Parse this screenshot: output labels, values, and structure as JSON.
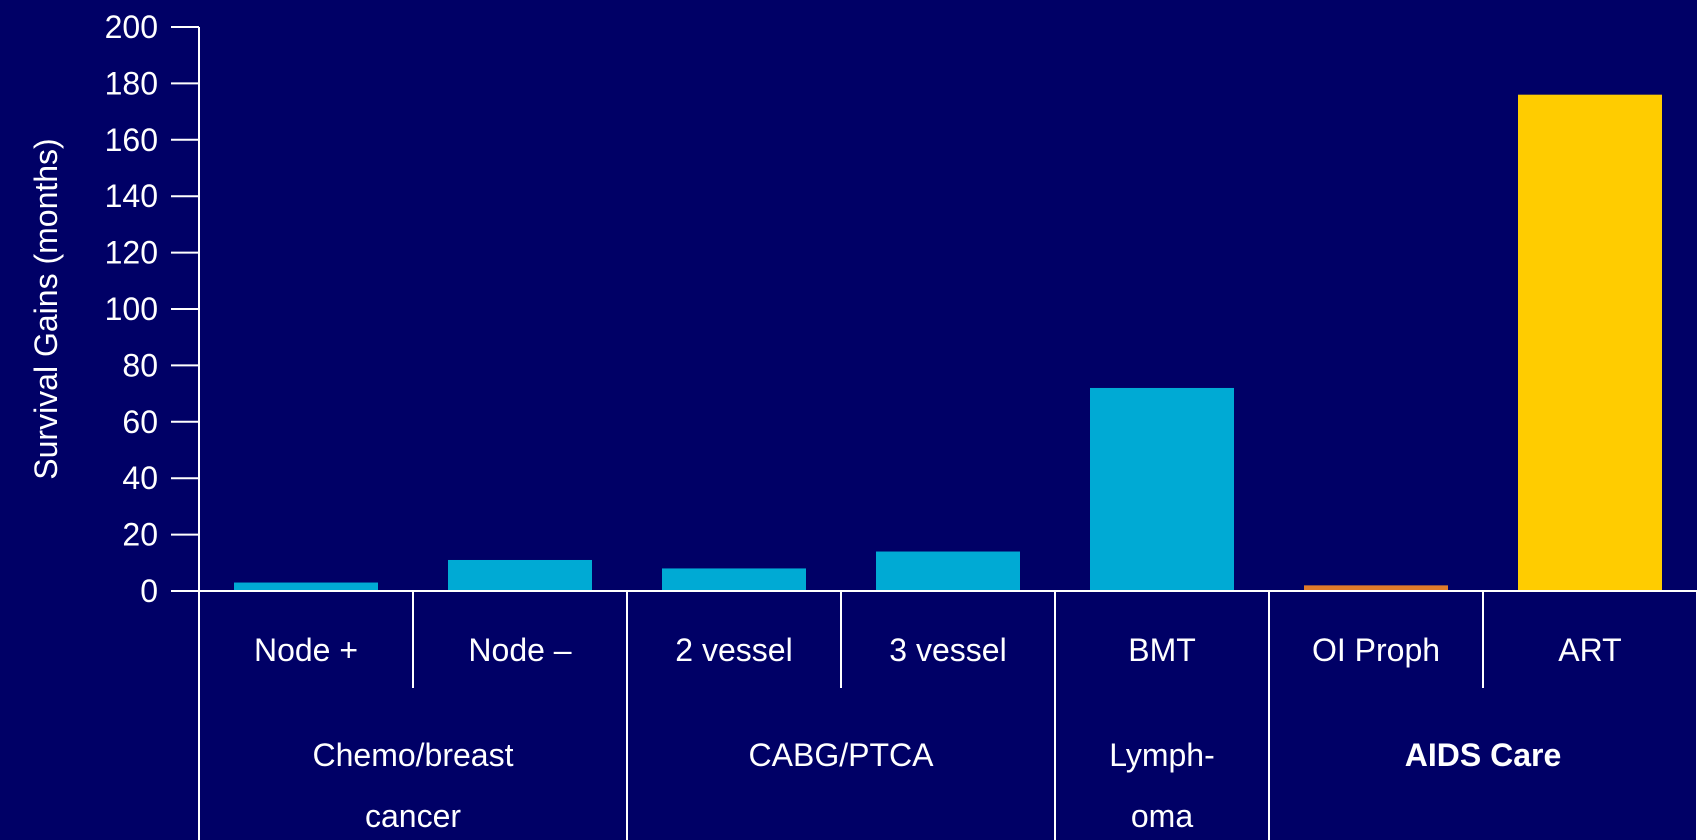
{
  "chart_data": {
    "type": "bar",
    "ylabel": "Survival Gains (months)",
    "ylim": [
      0,
      200
    ],
    "yticks": [
      0,
      20,
      40,
      60,
      80,
      100,
      120,
      140,
      160,
      180,
      200
    ],
    "categories": [
      "Node +",
      "Node –",
      "2 vessel",
      "3 vessel",
      "BMT",
      "OI Proph",
      "ART"
    ],
    "values": [
      3,
      11,
      8,
      14,
      72,
      2,
      176
    ],
    "bar_colors": [
      "#00AAD4",
      "#00AAD4",
      "#00AAD4",
      "#00AAD4",
      "#00AAD4",
      "#E07B2A",
      "#FFCC00"
    ],
    "groups": [
      {
        "lines": [
          "Chemo/breast",
          "cancer"
        ],
        "span": [
          0,
          1
        ],
        "bold": false
      },
      {
        "lines": [
          "CABG/PTCA"
        ],
        "span": [
          2,
          3
        ],
        "bold": false
      },
      {
        "lines": [
          "Lymph-",
          "oma"
        ],
        "span": [
          4,
          4
        ],
        "bold": false
      },
      {
        "lines": [
          "AIDS Care"
        ],
        "span": [
          5,
          6
        ],
        "bold": true
      }
    ]
  },
  "colors": {
    "background": "#000066",
    "axis": "#ffffff",
    "text": "#ffffff"
  }
}
